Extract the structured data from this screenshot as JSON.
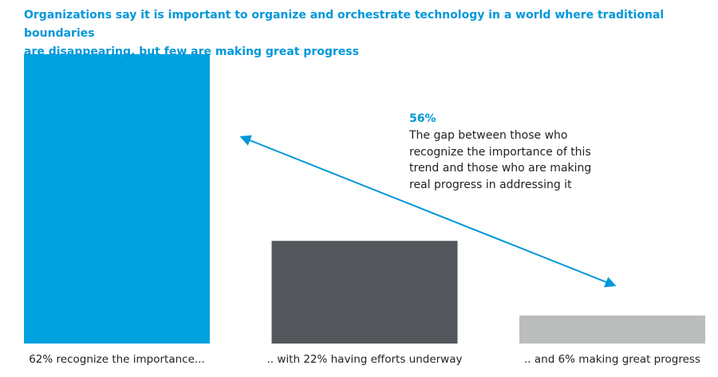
{
  "chart_data": {
    "type": "bar",
    "title": "Organizations say it is important to organize and orchestrate technology in a world where traditional boundaries\nare disappearing, but few are making great progress",
    "categories": [
      "62% recognize the importance...",
      ".. with 22% having efforts underway",
      ".. and 6% making great progress"
    ],
    "values": [
      62,
      22,
      6
    ],
    "colors": [
      "#00a3e0",
      "#53565a",
      "#bbbcbc"
    ],
    "annotation": {
      "value_label": "56%",
      "text": "The gap between those who\nrecognize the importance of this\ntrend and those who are making\nreal progress in addressing it"
    }
  }
}
